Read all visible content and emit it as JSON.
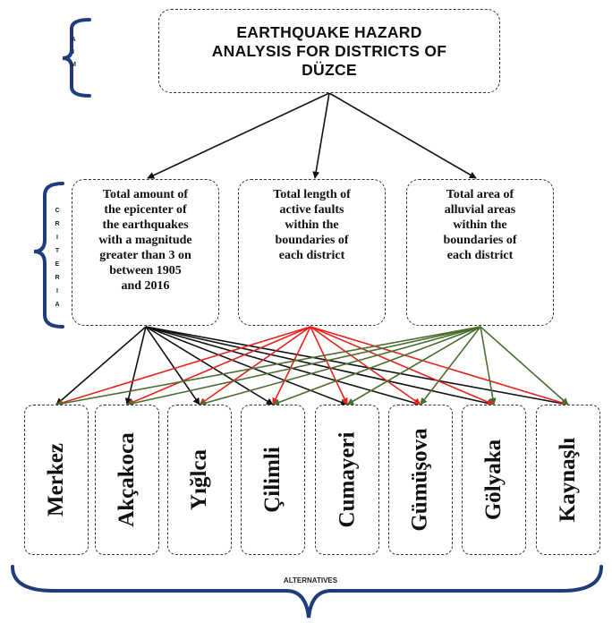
{
  "goal": {
    "label_tag": "AIM",
    "text": "EARTHQUAKE HAZARD\nANALYSIS FOR DISTRICTS OF\nDÜZCE"
  },
  "criteria_tag": "CRITERIA",
  "criteria": [
    {
      "text": "Total amount of\nthe epicenter of\nthe earthquakes\nwith a magnitude\ngreater than 3 on\nbetween 1905\nand 2016",
      "arrow_color": "#111111"
    },
    {
      "text": "Total length of\nactive faults\nwithin the\nboundaries of\neach district",
      "arrow_color": "#e8231f"
    },
    {
      "text": "Total area of\nalluvial areas\nwithin the\nboundaries of\neach district",
      "arrow_color": "#4a6e2f"
    }
  ],
  "alternatives_tag": "ALTERNATIVES",
  "alternatives": [
    "Merkez",
    "Akçakoca",
    "Yığlca",
    "Çilimli",
    "Cumayeri",
    "Gümüşova",
    "Gölyaka",
    "Kaynaşlı"
  ],
  "colors": {
    "brace": "#1f3d7a",
    "goal_arrow": "#111111"
  }
}
